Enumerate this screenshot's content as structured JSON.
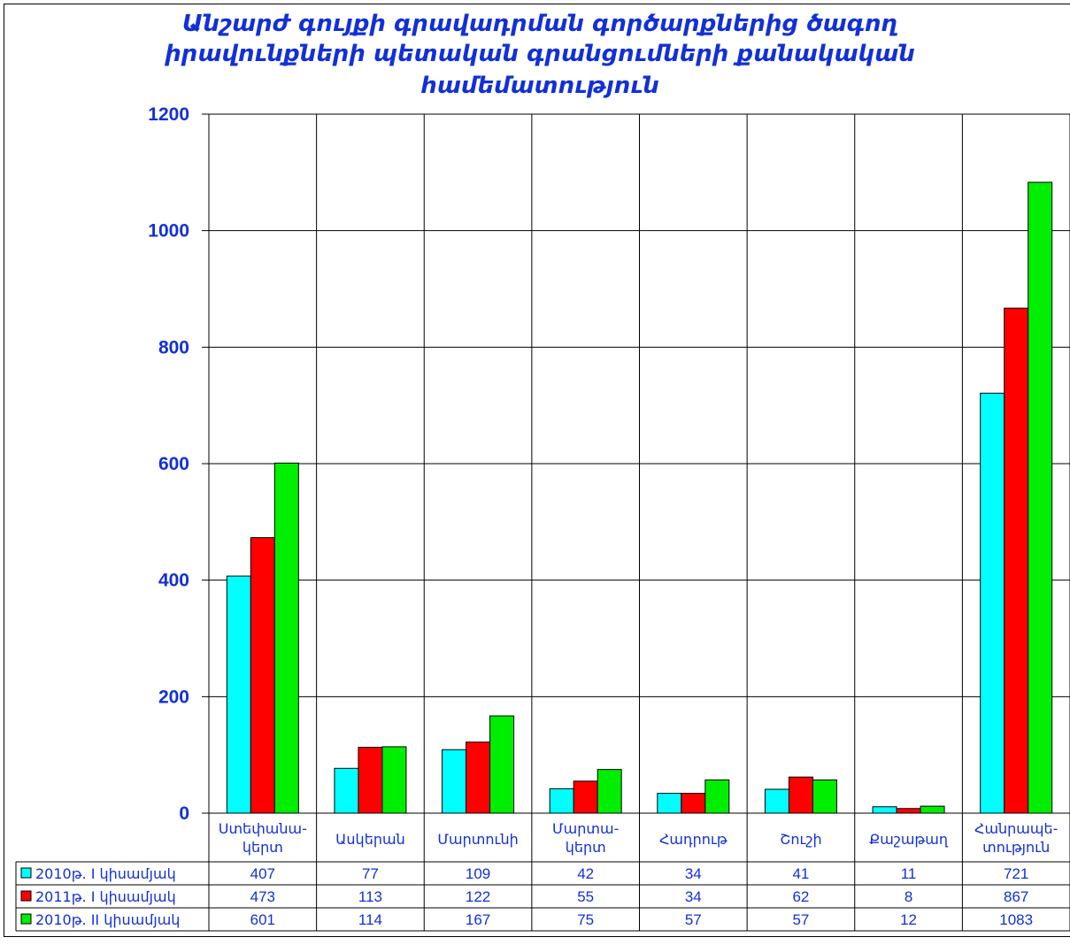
{
  "chart_data": {
    "type": "bar",
    "title_lines": [
      "Անշարժ գույքի գրավադրման գործարքներից  ծագող",
      "իրավունքների պետական գրանցումների քանակական",
      "համեմատություն"
    ],
    "categories": [
      [
        "Ստեփանա-",
        "կերտ"
      ],
      [
        "Ասկերան"
      ],
      [
        "Մարտունի"
      ],
      [
        "Մարտա-",
        "կերտ"
      ],
      [
        "Հադրութ"
      ],
      [
        "Շուշի"
      ],
      [
        "Քաշաթաղ"
      ],
      [
        "Հանրապե-",
        "տություն"
      ]
    ],
    "series": [
      {
        "name": "2010թ. I կիսամյակ",
        "color": "#00ffff",
        "values": [
          407,
          77,
          109,
          42,
          34,
          41,
          11,
          721
        ]
      },
      {
        "name": "2011թ. I կիսամյակ",
        "color": "#ff0000",
        "values": [
          473,
          113,
          122,
          55,
          34,
          62,
          8,
          867
        ]
      },
      {
        "name": "2010թ. II կիսամյակ",
        "color": "#00ee00",
        "values": [
          601,
          114,
          167,
          75,
          57,
          57,
          12,
          1083
        ]
      }
    ],
    "ylim": [
      0,
      1200
    ],
    "yticks": [
      "0",
      "200",
      "400",
      "600",
      "800",
      "1000",
      "1200"
    ],
    "grid": true,
    "legend": "data-table-left"
  }
}
